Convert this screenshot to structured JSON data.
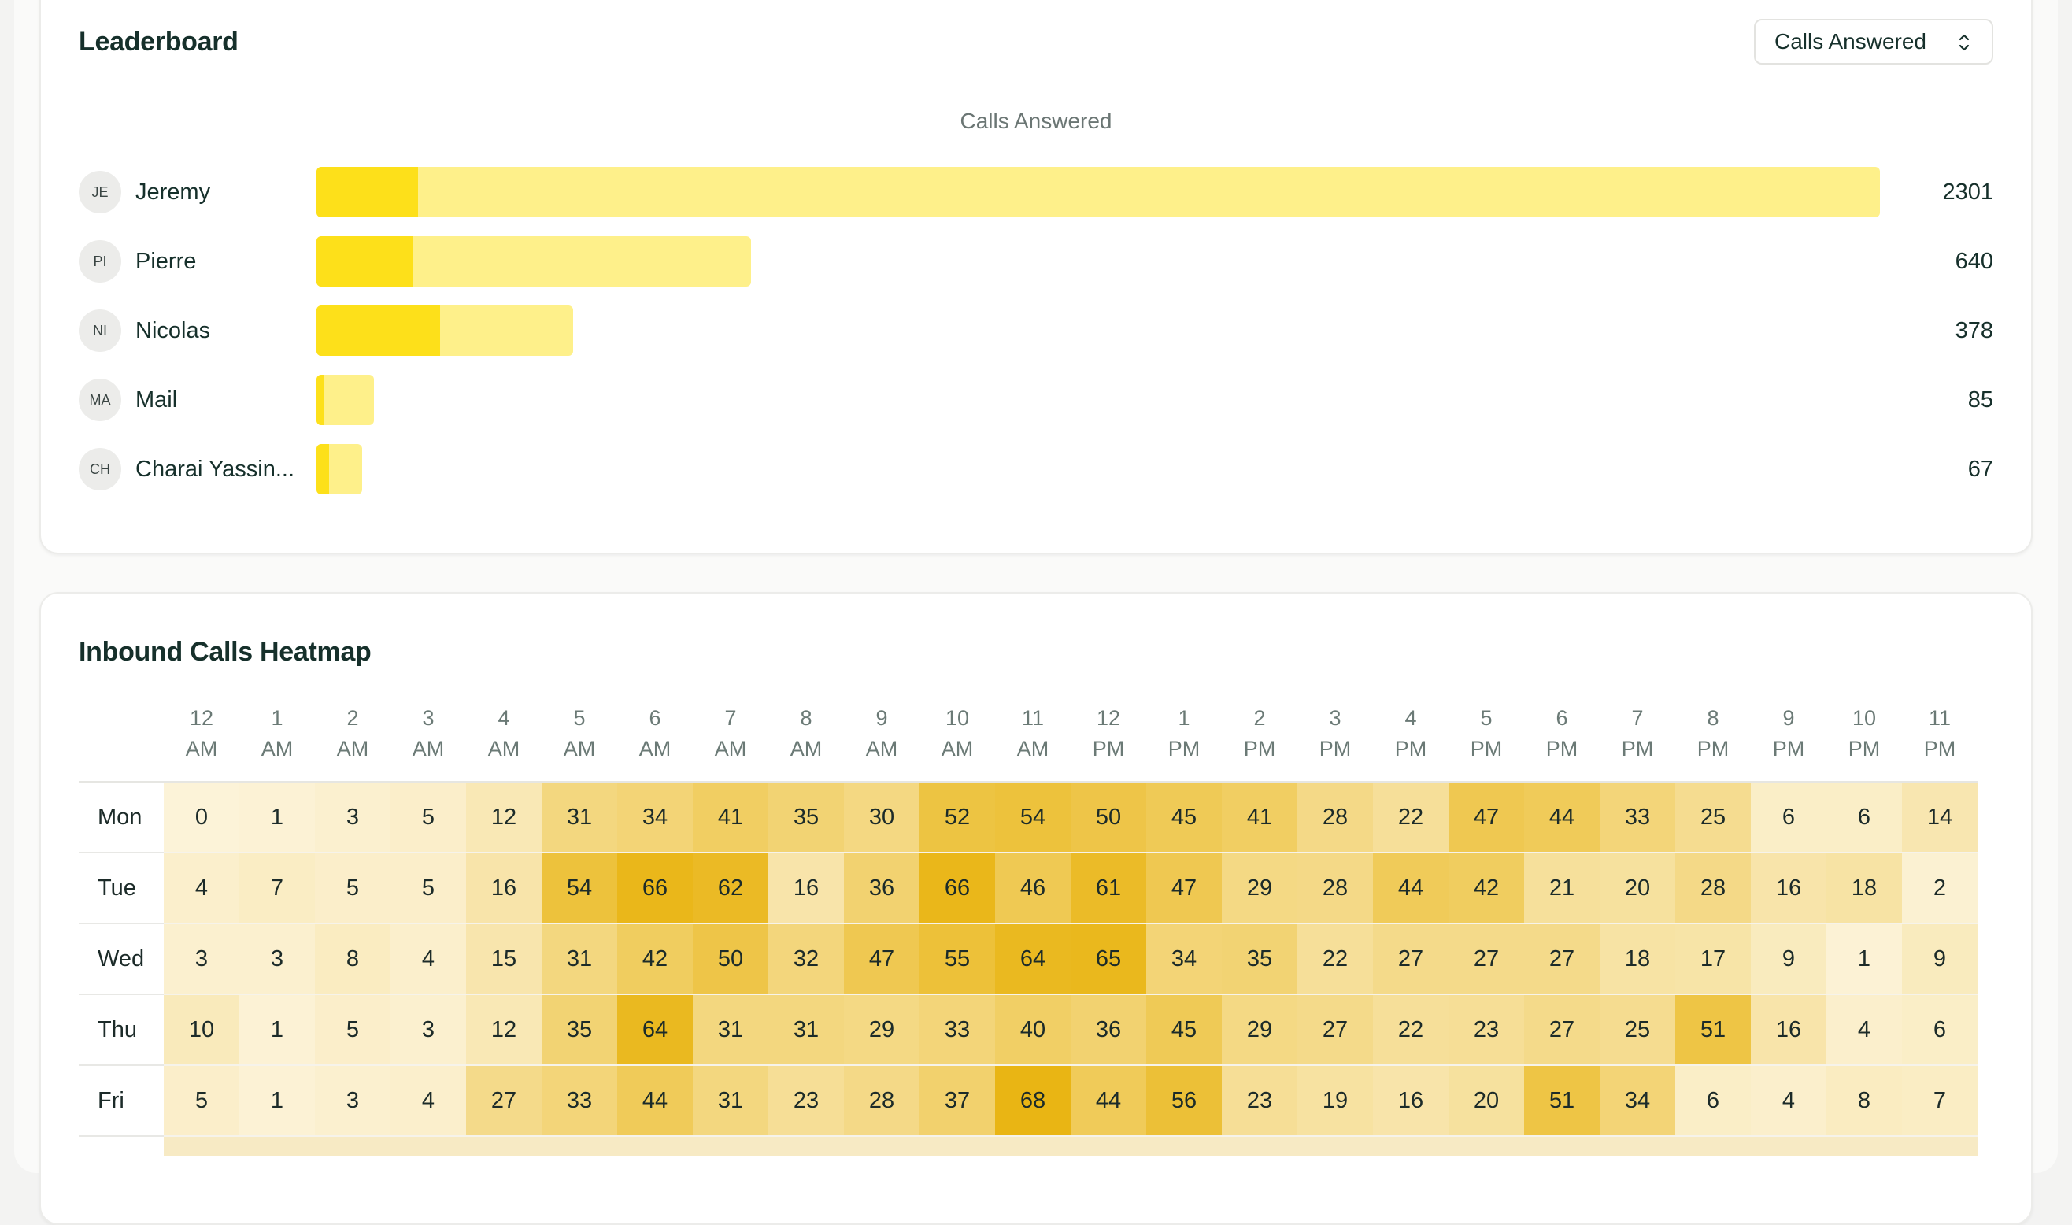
{
  "leaderboard": {
    "title": "Leaderboard",
    "metric_select": "Calls Answered",
    "chart_title": "Calls Answered",
    "max_value": 2301,
    "rows": [
      {
        "initials": "JE",
        "name": "Jeremy",
        "value": "2301",
        "total": 2301,
        "highlight": 150
      },
      {
        "initials": "PI",
        "name": "Pierre",
        "value": "640",
        "total": 640,
        "highlight": 141
      },
      {
        "initials": "NI",
        "name": "Nicolas",
        "value": "378",
        "total": 378,
        "highlight": 182
      },
      {
        "initials": "MA",
        "name": "Mail",
        "value": "85",
        "total": 85,
        "highlight": 12
      },
      {
        "initials": "CH",
        "name": "Charai Yassin...",
        "value": "67",
        "total": 67,
        "highlight": 18
      }
    ]
  },
  "heatmap": {
    "title": "Inbound Calls Heatmap",
    "hours": [
      [
        "12",
        "AM"
      ],
      [
        "1",
        "AM"
      ],
      [
        "2",
        "AM"
      ],
      [
        "3",
        "AM"
      ],
      [
        "4",
        "AM"
      ],
      [
        "5",
        "AM"
      ],
      [
        "6",
        "AM"
      ],
      [
        "7",
        "AM"
      ],
      [
        "8",
        "AM"
      ],
      [
        "9",
        "AM"
      ],
      [
        "10",
        "AM"
      ],
      [
        "11",
        "AM"
      ],
      [
        "12",
        "PM"
      ],
      [
        "1",
        "PM"
      ],
      [
        "2",
        "PM"
      ],
      [
        "3",
        "PM"
      ],
      [
        "4",
        "PM"
      ],
      [
        "5",
        "PM"
      ],
      [
        "6",
        "PM"
      ],
      [
        "7",
        "PM"
      ],
      [
        "8",
        "PM"
      ],
      [
        "9",
        "PM"
      ],
      [
        "10",
        "PM"
      ],
      [
        "11",
        "PM"
      ]
    ],
    "days": [
      {
        "label": "Mon",
        "values": [
          0,
          1,
          3,
          5,
          12,
          31,
          34,
          41,
          35,
          30,
          52,
          54,
          50,
          45,
          41,
          28,
          22,
          47,
          44,
          33,
          25,
          6,
          6,
          14
        ]
      },
      {
        "label": "Tue",
        "values": [
          4,
          7,
          5,
          5,
          16,
          54,
          66,
          62,
          16,
          36,
          66,
          46,
          61,
          47,
          29,
          28,
          44,
          42,
          21,
          20,
          28,
          16,
          18,
          2
        ]
      },
      {
        "label": "Wed",
        "values": [
          3,
          3,
          8,
          4,
          15,
          31,
          42,
          50,
          32,
          47,
          55,
          64,
          65,
          34,
          35,
          22,
          27,
          27,
          27,
          18,
          17,
          9,
          1,
          9
        ]
      },
      {
        "label": "Thu",
        "values": [
          10,
          1,
          5,
          3,
          12,
          35,
          64,
          31,
          31,
          29,
          33,
          40,
          36,
          45,
          29,
          27,
          22,
          23,
          27,
          25,
          51,
          16,
          4,
          6
        ]
      },
      {
        "label": "Fri",
        "values": [
          5,
          1,
          3,
          4,
          27,
          33,
          44,
          31,
          23,
          28,
          37,
          68,
          44,
          56,
          23,
          19,
          16,
          20,
          51,
          34,
          6,
          4,
          8,
          7
        ]
      }
    ],
    "max_value": 68
  }
}
